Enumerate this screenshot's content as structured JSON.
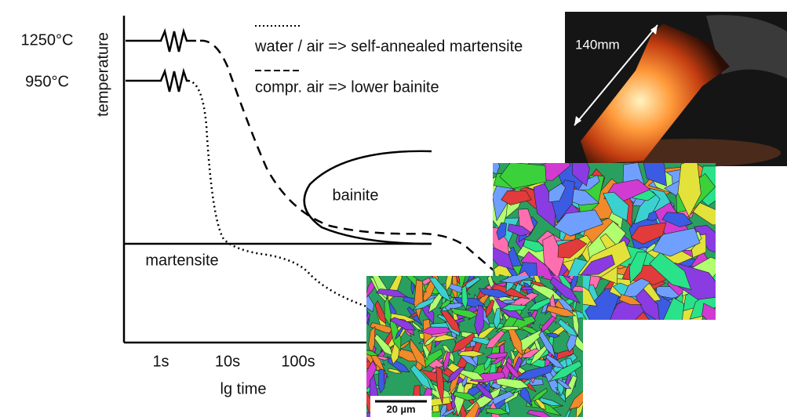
{
  "axes": {
    "y_labels": [
      "1250°C",
      "950°C"
    ],
    "y_title": "temperature",
    "x_labels": [
      "1s",
      "10s",
      "100s"
    ],
    "x_title": "lg time"
  },
  "legend": [
    "water / air => self-annealed martensite",
    "compr. air => lower bainite"
  ],
  "regions": {
    "bainite": "bainite",
    "martensite": "martensite"
  },
  "photo": {
    "label": "140mm"
  },
  "micrograph": {
    "scale": "20 µm"
  }
}
